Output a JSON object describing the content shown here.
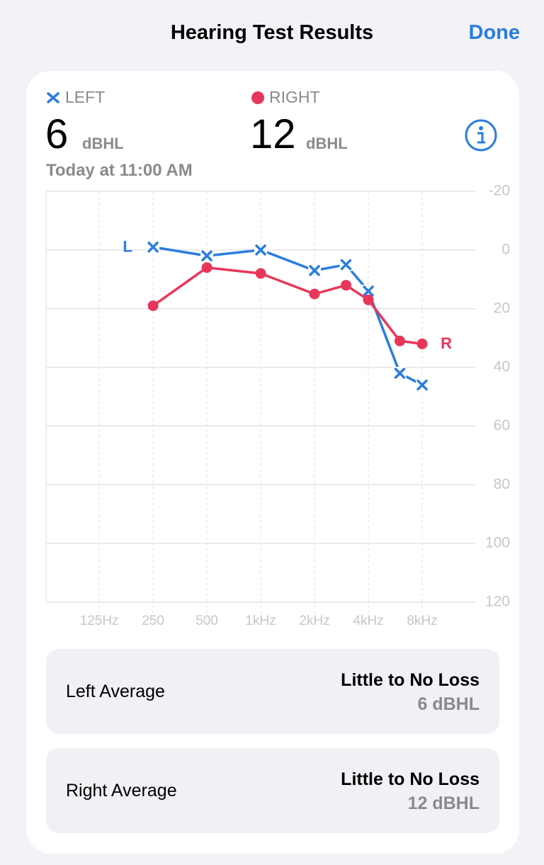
{
  "header": {
    "title": "Hearing Test Results",
    "done": "Done"
  },
  "summary": {
    "left_label": "LEFT",
    "left_value": "6",
    "left_unit": "dBHL",
    "right_label": "RIGHT",
    "right_value": "12",
    "right_unit": "dBHL",
    "timestamp": "Today at 11:00 AM"
  },
  "chart_data": {
    "type": "line",
    "x": [
      250,
      500,
      1000,
      2000,
      3000,
      4000,
      6000,
      8000
    ],
    "series": [
      {
        "name": "L",
        "color": "#2a7de1",
        "marker": "x",
        "values": [
          -1,
          2,
          0,
          7,
          5,
          14,
          42,
          46
        ]
      },
      {
        "name": "R",
        "color": "#e8365a",
        "marker": "circle",
        "values": [
          19,
          6,
          8,
          15,
          12,
          17,
          31,
          32
        ]
      }
    ],
    "xlim": [
      63,
      16000
    ],
    "xlog": true,
    "xticks": [
      {
        "value": 125,
        "label": "125Hz"
      },
      250,
      500,
      {
        "value": 1000,
        "label": "1kHz"
      },
      {
        "value": 2000,
        "label": "2kHz"
      },
      {
        "value": 4000,
        "label": "4kHz"
      },
      {
        "value": 8000,
        "label": "8kHz"
      }
    ],
    "ylim": [
      -20,
      120
    ],
    "y_reversed": true,
    "yticks": [
      -20,
      0,
      20,
      40,
      60,
      80,
      100,
      120
    ],
    "grid": true
  },
  "rows": [
    {
      "label": "Left Average",
      "status": "Little to No Loss",
      "value": "6 dBHL"
    },
    {
      "label": "Right Average",
      "status": "Little to No Loss",
      "value": "12 dBHL"
    }
  ]
}
